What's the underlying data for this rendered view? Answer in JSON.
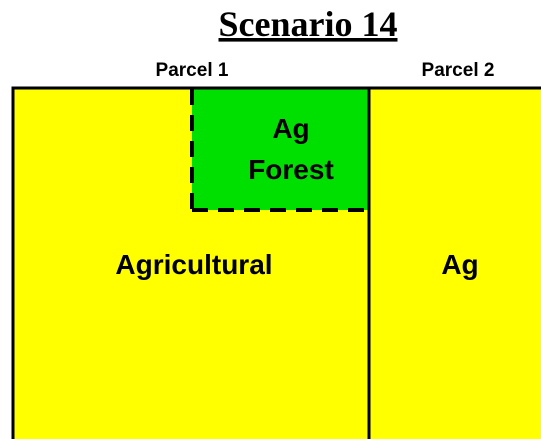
{
  "title": "Scenario 14",
  "parcels": [
    {
      "label": "Parcel 1"
    },
    {
      "label": "Parcel 2"
    }
  ],
  "regions": [
    {
      "label": "Agricultural"
    },
    {
      "label": "Ag"
    }
  ],
  "inset": {
    "label_lines": [
      "Ag",
      "Forest"
    ]
  }
}
